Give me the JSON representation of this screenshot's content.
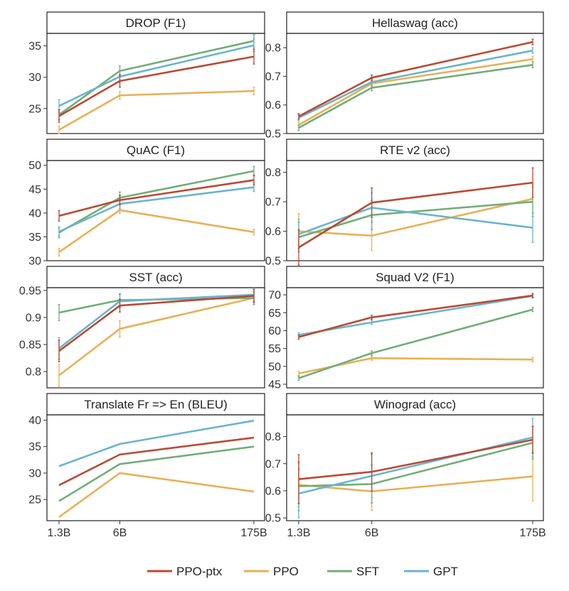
{
  "legend": {
    "position": "bottom",
    "items": [
      {
        "label": "PPO-ptx",
        "color": "#b94a35"
      },
      {
        "label": "PPO",
        "color": "#e8b056"
      },
      {
        "label": "SFT",
        "color": "#72ad78"
      },
      {
        "label": "GPT",
        "color": "#6bb4cc"
      }
    ]
  },
  "chart_data": [
    {
      "type": "line",
      "title": "DROP (F1)",
      "x": [
        "1.3B",
        "6B",
        "175B"
      ],
      "xscale": "log",
      "ylim": [
        21,
        37
      ],
      "yticks": [
        25,
        30,
        35
      ],
      "series": [
        {
          "name": "PPO-ptx",
          "values": [
            23.8,
            29.4,
            33.3
          ],
          "err": [
            1.0,
            1.0,
            1.2
          ]
        },
        {
          "name": "PPO",
          "values": [
            21.6,
            27.1,
            27.8
          ],
          "err": [
            0.6,
            0.6,
            0.6
          ]
        },
        {
          "name": "SFT",
          "values": [
            24.0,
            31.0,
            35.8
          ],
          "err": [
            0.8,
            0.8,
            1.0
          ]
        },
        {
          "name": "GPT",
          "values": [
            25.4,
            30.1,
            35.1
          ],
          "err": [
            1.0,
            1.0,
            1.0
          ]
        }
      ]
    },
    {
      "type": "line",
      "title": "Hellaswag (acc)",
      "x": [
        "1.3B",
        "6B",
        "175B"
      ],
      "xscale": "log",
      "ylim": [
        0.5,
        0.85
      ],
      "yticks": [
        0.5,
        0.6,
        0.7,
        0.8
      ],
      "series": [
        {
          "name": "PPO-ptx",
          "values": [
            0.56,
            0.695,
            0.82
          ],
          "err": [
            0.01,
            0.01,
            0.01
          ]
        },
        {
          "name": "PPO",
          "values": [
            0.53,
            0.675,
            0.76
          ],
          "err": [
            0.01,
            0.01,
            0.01
          ]
        },
        {
          "name": "SFT",
          "values": [
            0.52,
            0.66,
            0.74
          ],
          "err": [
            0.01,
            0.01,
            0.01
          ]
        },
        {
          "name": "GPT",
          "values": [
            0.555,
            0.68,
            0.79
          ],
          "err": [
            0.01,
            0.01,
            0.01
          ]
        }
      ]
    },
    {
      "type": "line",
      "title": "QuAC (F1)",
      "x": [
        "1.3B",
        "6B",
        "175B"
      ],
      "xscale": "log",
      "ylim": [
        30,
        51
      ],
      "yticks": [
        30,
        35,
        40,
        45,
        50
      ],
      "series": [
        {
          "name": "PPO-ptx",
          "values": [
            39.4,
            42.7,
            46.9
          ],
          "err": [
            1.1,
            1.0,
            1.0
          ]
        },
        {
          "name": "PPO",
          "values": [
            31.8,
            40.6,
            36.0
          ],
          "err": [
            0.8,
            0.7,
            0.6
          ]
        },
        {
          "name": "SFT",
          "values": [
            35.9,
            43.2,
            48.8
          ],
          "err": [
            1.1,
            1.2,
            1.0
          ]
        },
        {
          "name": "GPT",
          "values": [
            36.1,
            41.9,
            45.4
          ],
          "err": [
            1.0,
            1.0,
            0.9
          ]
        }
      ]
    },
    {
      "type": "line",
      "title": "RTE v2 (acc)",
      "x": [
        "1.3B",
        "6B",
        "175B"
      ],
      "xscale": "log",
      "ylim": [
        0.5,
        0.84
      ],
      "yticks": [
        0.5,
        0.6,
        0.7,
        0.8
      ],
      "series": [
        {
          "name": "PPO-ptx",
          "values": [
            0.545,
            0.697,
            0.765
          ],
          "err": [
            0.06,
            0.05,
            0.05
          ]
        },
        {
          "name": "PPO",
          "values": [
            0.6,
            0.585,
            0.71
          ],
          "err": [
            0.06,
            0.05,
            0.05
          ]
        },
        {
          "name": "SFT",
          "values": [
            0.58,
            0.655,
            0.7
          ],
          "err": [
            0.05,
            0.05,
            0.05
          ]
        },
        {
          "name": "GPT",
          "values": [
            0.59,
            0.68,
            0.612
          ],
          "err": [
            0.05,
            0.05,
            0.05
          ]
        }
      ]
    },
    {
      "type": "line",
      "title": "SST (acc)",
      "x": [
        "1.3B",
        "6B",
        "175B"
      ],
      "xscale": "log",
      "ylim": [
        0.77,
        0.955
      ],
      "yticks": [
        0.8,
        0.85,
        0.9,
        0.95
      ],
      "series": [
        {
          "name": "PPO-ptx",
          "values": [
            0.838,
            0.922,
            0.94
          ],
          "err": [
            0.02,
            0.012,
            0.012
          ]
        },
        {
          "name": "PPO",
          "values": [
            0.793,
            0.879,
            0.936
          ],
          "err": [
            0.02,
            0.015,
            0.012
          ]
        },
        {
          "name": "SFT",
          "values": [
            0.909,
            0.932,
            0.936
          ],
          "err": [
            0.015,
            0.012,
            0.012
          ]
        },
        {
          "name": "GPT",
          "values": [
            0.843,
            0.93,
            0.942
          ],
          "err": [
            0.02,
            0.012,
            0.012
          ]
        }
      ]
    },
    {
      "type": "line",
      "title": "Squad V2 (F1)",
      "x": [
        "1.3B",
        "6B",
        "175B"
      ],
      "xscale": "log",
      "ylim": [
        44,
        72
      ],
      "yticks": [
        45,
        50,
        55,
        60,
        65,
        70
      ],
      "series": [
        {
          "name": "PPO-ptx",
          "values": [
            58.2,
            63.7,
            69.8
          ],
          "err": [
            0.6,
            0.6,
            0.6
          ]
        },
        {
          "name": "PPO",
          "values": [
            48.0,
            52.3,
            51.9
          ],
          "err": [
            0.6,
            0.6,
            0.6
          ]
        },
        {
          "name": "SFT",
          "values": [
            46.7,
            53.7,
            65.9
          ],
          "err": [
            0.6,
            0.6,
            0.6
          ]
        },
        {
          "name": "GPT",
          "values": [
            58.8,
            62.3,
            69.7
          ],
          "err": [
            0.6,
            0.6,
            0.6
          ]
        }
      ]
    },
    {
      "type": "line",
      "title": "Translate Fr => En (BLEU)",
      "x": [
        "1.3B",
        "6B",
        "175B"
      ],
      "xscale": "log",
      "ylim": [
        21,
        41
      ],
      "yticks": [
        25,
        30,
        35,
        40
      ],
      "series": [
        {
          "name": "PPO-ptx",
          "values": [
            27.7,
            33.5,
            36.7
          ]
        },
        {
          "name": "PPO",
          "values": [
            21.7,
            30.0,
            26.5
          ]
        },
        {
          "name": "SFT",
          "values": [
            24.7,
            31.7,
            35.0
          ]
        },
        {
          "name": "GPT",
          "values": [
            31.3,
            35.5,
            39.9
          ]
        }
      ]
    },
    {
      "type": "line",
      "title": "Winograd (acc)",
      "x": [
        "1.3B",
        "6B",
        "175B"
      ],
      "xscale": "log",
      "ylim": [
        0.49,
        0.88
      ],
      "yticks": [
        0.5,
        0.6,
        0.7,
        0.8
      ],
      "series": [
        {
          "name": "PPO-ptx",
          "values": [
            0.643,
            0.67,
            0.788
          ],
          "err": [
            0.09,
            0.07,
            0.05
          ]
        },
        {
          "name": "PPO",
          "values": [
            0.622,
            0.598,
            0.653
          ],
          "err": [
            0.08,
            0.07,
            0.09
          ]
        },
        {
          "name": "SFT",
          "values": [
            0.617,
            0.625,
            0.777
          ],
          "err": [
            0.09,
            0.07,
            0.06
          ]
        },
        {
          "name": "GPT",
          "values": [
            0.59,
            0.655,
            0.797
          ],
          "err": [
            0.09,
            0.08,
            0.07
          ]
        }
      ]
    }
  ]
}
